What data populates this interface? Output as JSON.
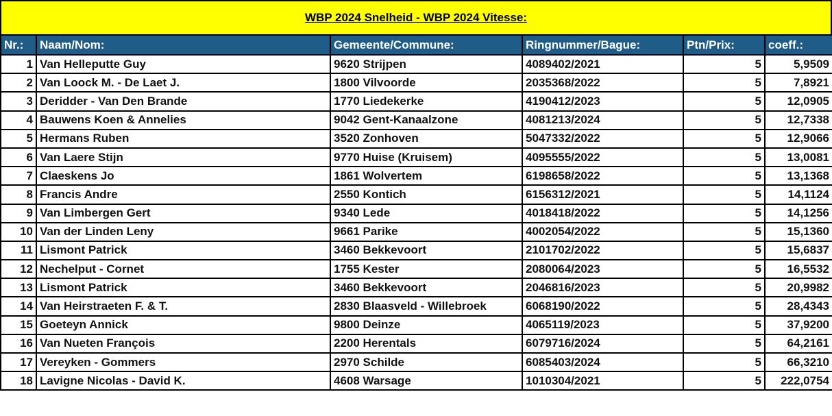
{
  "title": "WBP 2024 Snelheid - WBP 2024 Vitesse:",
  "colors": {
    "title_bg": "#ffff00",
    "header_bg": "#1f5c87"
  },
  "headers": [
    "Nr.:",
    "Naam/Nom:",
    "Gemeente/Commune:",
    "Ringnummer/Bague:",
    "Ptn/Prix:",
    "coeff.:"
  ],
  "rows": [
    [
      "1",
      "Van Helleputte Guy",
      "9620 Strijpen",
      "4089402/2021",
      "5",
      "5,9509"
    ],
    [
      "2",
      "Van Loock M. - De Laet J.",
      "1800 Vilvoorde",
      "2035368/2022",
      "5",
      "7,8921"
    ],
    [
      "3",
      "Deridder - Van Den Brande",
      "1770 Liedekerke",
      "4190412/2023",
      "5",
      "12,0905"
    ],
    [
      "4",
      "Bauwens Koen & Annelies",
      "9042 Gent-Kanaalzone",
      "4081213/2024",
      "5",
      "12,7338"
    ],
    [
      "5",
      "Hermans Ruben",
      "3520 Zonhoven",
      "5047332/2022",
      "5",
      "12,9066"
    ],
    [
      "6",
      "Van Laere Stijn",
      "9770 Huise (Kruisem)",
      "4095555/2022",
      "5",
      "13,0081"
    ],
    [
      "7",
      "Claeskens Jo",
      "1861 Wolvertem",
      "6198658/2022",
      "5",
      "13,1368"
    ],
    [
      "8",
      "Francis Andre",
      "2550 Kontich",
      "6156312/2021",
      "5",
      "14,1124"
    ],
    [
      "9",
      "Van Limbergen Gert",
      "9340 Lede",
      "4018418/2022",
      "5",
      "14,1256"
    ],
    [
      "10",
      "Van der Linden Leny",
      "9661 Parike",
      "4002054/2022",
      "5",
      "15,1360"
    ],
    [
      "11",
      "Lismont Patrick",
      "3460 Bekkevoort",
      "2101702/2022",
      "5",
      "15,6837"
    ],
    [
      "12",
      "Nechelput - Cornet",
      "1755 Kester",
      "2080064/2023",
      "5",
      "16,5532"
    ],
    [
      "13",
      "Lismont Patrick",
      "3460 Bekkevoort",
      "2046816/2023",
      "5",
      "20,9982"
    ],
    [
      "14",
      "Van Heirstraeten F. & T.",
      "2830 Blaasveld - Willebroek",
      "6068190/2022",
      "5",
      "28,4343"
    ],
    [
      "15",
      "Goeteyn Annick",
      "9800 Deinze",
      "4065119/2023",
      "5",
      "37,9200"
    ],
    [
      "16",
      "Van Nueten François",
      "2200 Herentals",
      "6079716/2024",
      "5",
      "64,2161"
    ],
    [
      "17",
      "Vereyken - Gommers",
      "2970 Schilde",
      "6085403/2024",
      "5",
      "66,3210"
    ],
    [
      "18",
      "Lavigne Nicolas - David K.",
      "4608 Warsage",
      "1010304/2021",
      "5",
      "222,0754"
    ]
  ]
}
